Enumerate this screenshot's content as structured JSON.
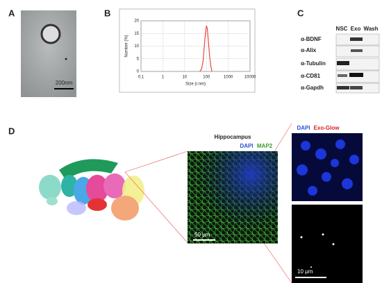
{
  "panels": {
    "a": {
      "label": "A",
      "scale": "200nm"
    },
    "b": {
      "label": "B"
    },
    "c": {
      "label": "C",
      "lanes": [
        "NSC",
        "Exo",
        "Wash"
      ],
      "rows": [
        "α-BDNF",
        "α-Alix",
        "α-Tubulin",
        "α-CD81",
        "α-Gapdh"
      ]
    },
    "d": {
      "label": "D",
      "region": "Hippocampus",
      "stain1": [
        "DAPI",
        "MAP2"
      ],
      "scale1": "50 μm",
      "stain2": [
        "DAPI",
        "Exo-Glow"
      ],
      "scale2": "10 μm"
    }
  },
  "chart_data": {
    "type": "line",
    "xlabel": "Size (r.nm)",
    "ylabel": "Number (%)",
    "x": [
      50,
      60,
      70,
      80,
      90,
      100,
      110,
      120,
      140,
      160,
      180
    ],
    "values": [
      0,
      1,
      4,
      10,
      15,
      18,
      17,
      13,
      6,
      2,
      0
    ],
    "color": "#e8473c",
    "log_x": true,
    "xlim": [
      0.1,
      10000
    ],
    "xticks": [
      0.1,
      1,
      10,
      100,
      1000,
      10000
    ],
    "ylim": [
      0,
      20
    ],
    "yticks": [
      0,
      5,
      10,
      15,
      20
    ],
    "grid": true
  }
}
